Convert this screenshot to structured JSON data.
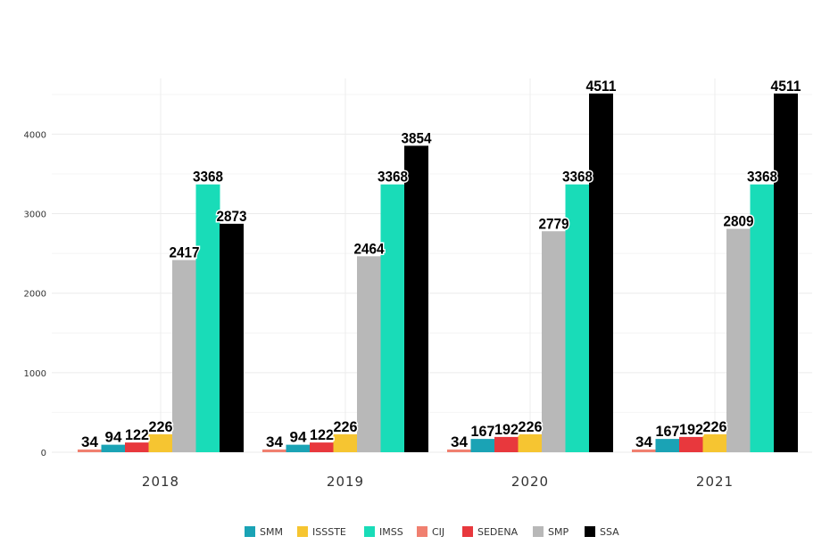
{
  "chart_data": {
    "type": "bar",
    "categories": [
      "2018",
      "2019",
      "2020",
      "2021"
    ],
    "ylim": [
      0,
      4700
    ],
    "yticks": [
      0,
      1000,
      2000,
      3000,
      4000
    ],
    "grid": true,
    "legend_position": "bottom",
    "series": [
      {
        "name": "CIJ",
        "color": "#f08070",
        "values": [
          34,
          34,
          34,
          34
        ]
      },
      {
        "name": "SMM",
        "color": "#1aa3b5",
        "values": [
          94,
          94,
          167,
          167
        ]
      },
      {
        "name": "SEDENA",
        "color": "#e8383d",
        "values": [
          122,
          122,
          192,
          192
        ]
      },
      {
        "name": "ISSSTE",
        "color": "#f6c531",
        "values": [
          226,
          226,
          226,
          226
        ]
      },
      {
        "name": "SMP",
        "color": "#b8b8b8",
        "values": [
          2417,
          2464,
          2779,
          2809
        ]
      },
      {
        "name": "IMSS",
        "color": "#19dcb8",
        "values": [
          3368,
          3368,
          3368,
          3368
        ]
      },
      {
        "name": "SSA",
        "color": "#000000",
        "values": [
          2873,
          3854,
          4511,
          4511
        ]
      }
    ],
    "legend_order": [
      "SMM",
      "ISSSTE",
      "IMSS",
      "CIJ",
      "SEDENA",
      "SMP",
      "SSA"
    ]
  }
}
